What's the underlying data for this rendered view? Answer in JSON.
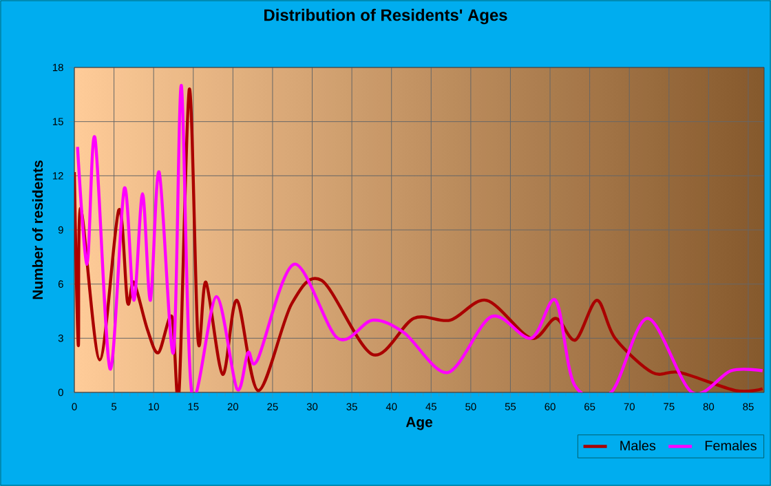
{
  "chart_data": {
    "type": "line",
    "title": "Distribution of Residents' Ages",
    "xlabel": "Age",
    "ylabel": "Number of residents",
    "xlim": [
      0,
      87
    ],
    "ylim": [
      0,
      18
    ],
    "xticks": [
      0,
      5,
      10,
      15,
      20,
      25,
      30,
      35,
      40,
      45,
      50,
      55,
      60,
      65,
      70,
      75,
      80,
      85
    ],
    "yticks": [
      0,
      3,
      6,
      9,
      12,
      15,
      18
    ],
    "grid": true,
    "legend": "bottom right",
    "series": [
      {
        "name": "Males",
        "color": "#aa0000",
        "x": [
          0,
          0.5,
          0.8,
          3.2,
          5.6,
          6.7,
          7.5,
          9.2,
          10.6,
          12.3,
          13.2,
          14.5,
          15.6,
          16.6,
          18.7,
          20.5,
          23.2,
          27.4,
          31.2,
          37.6,
          42.8,
          47.4,
          52.0,
          57.6,
          60.7,
          63.2,
          65.9,
          68.2,
          72.9,
          76.4,
          83.4,
          86.8
        ],
        "values": [
          12.2,
          2.6,
          10.2,
          1.8,
          10.1,
          5.0,
          6.1,
          3.5,
          2.2,
          4.2,
          0,
          16.8,
          2.9,
          6.1,
          1.0,
          5.1,
          0.1,
          4.9,
          6.2,
          2.1,
          4.1,
          4.0,
          5.1,
          3.0,
          4.1,
          2.9,
          5.1,
          3.0,
          1.1,
          1.1,
          0.1,
          0.2
        ]
      },
      {
        "name": "Females",
        "color": "#ff00ff",
        "x": [
          0.4,
          1.6,
          2.6,
          4.5,
          6.3,
          7.5,
          8.6,
          9.6,
          10.7,
          12.5,
          13.5,
          14.8,
          17.9,
          20.5,
          21.9,
          23.1,
          27.7,
          33.2,
          37.6,
          41.6,
          47.1,
          52.6,
          57.6,
          60.7,
          63.1,
          67.7,
          72.3,
          77.9,
          82.8,
          86.8
        ],
        "values": [
          13.6,
          7.1,
          14.1,
          1.3,
          11.3,
          5.1,
          11.0,
          5.1,
          12.2,
          2.2,
          17.0,
          0,
          5.3,
          0.2,
          2.2,
          1.8,
          7.1,
          3.0,
          4.0,
          3.3,
          1.1,
          4.2,
          3.0,
          5.1,
          0.4,
          0,
          4.1,
          0,
          1.2,
          1.2
        ]
      }
    ]
  }
}
